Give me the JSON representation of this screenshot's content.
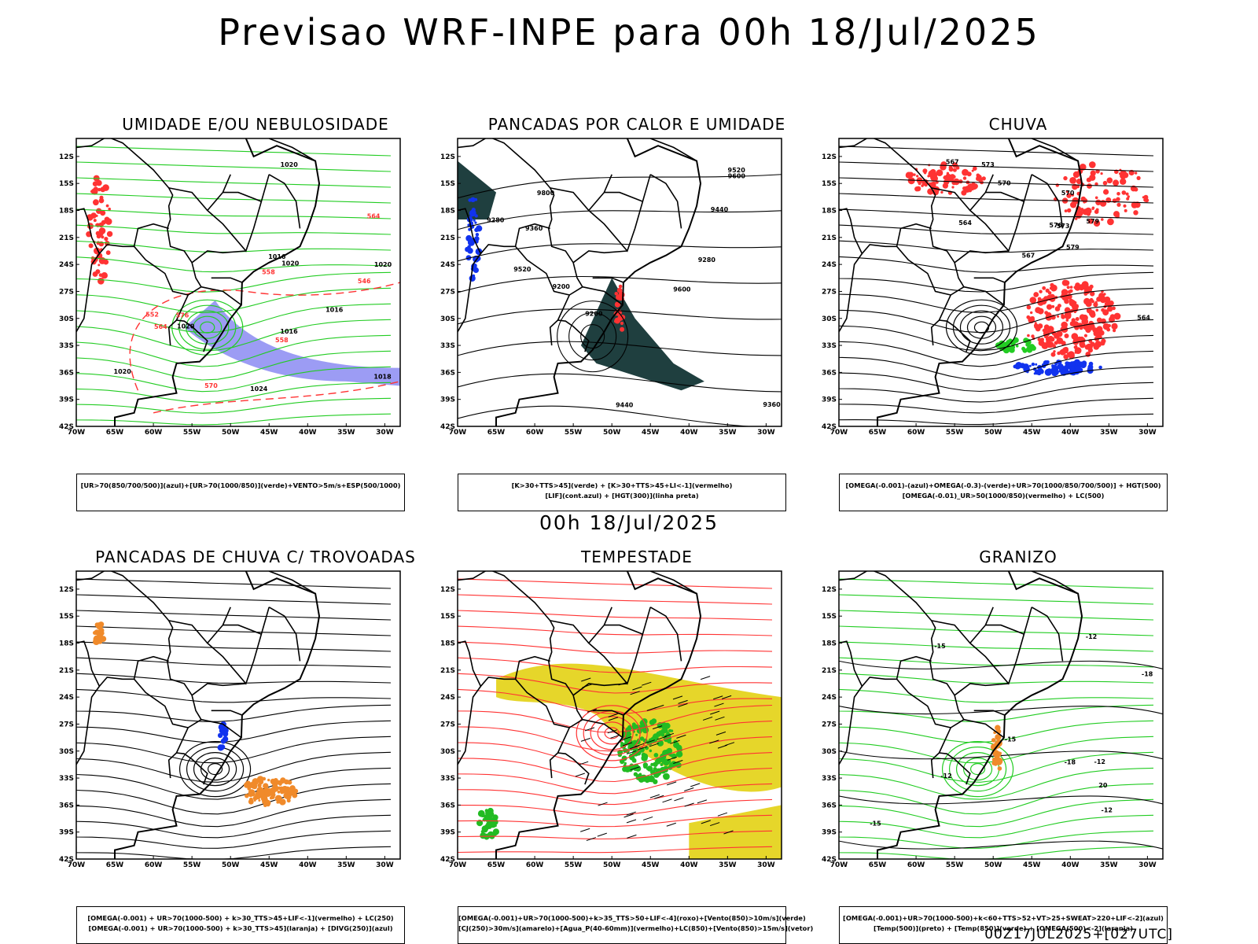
{
  "header": {
    "title": "Previsao WRF-INPE  para 00h 18/Jul/2025",
    "mid_title": "00h 18/Jul/2025",
    "footer": "00Z17JUL2025+[027UTC]"
  },
  "axes": {
    "lat_labels": [
      "12S",
      "15S",
      "18S",
      "21S",
      "24S",
      "27S",
      "30S",
      "33S",
      "36S",
      "39S",
      "42S"
    ],
    "lon_labels": [
      "70W",
      "65W",
      "60W",
      "55W",
      "50W",
      "45W",
      "40W",
      "35W",
      "30W"
    ]
  },
  "panels": [
    {
      "title": "UMIDADE E/OU NEBULOSIDADE",
      "legend": [
        "[UR>70(850/700/500)](azul)+[UR>70(1000/850)](verde)+VENTO>5m/s+ESP(500/1000)"
      ],
      "contour_labels": [
        "1016",
        "1020",
        "1024",
        "1020",
        "1020",
        "1016",
        "1020",
        "1020",
        "1016",
        "1018",
        "570",
        "576",
        "564",
        "558",
        "552",
        "546",
        "564",
        "558"
      ],
      "colors": {
        "shade": "#7b7bf0",
        "contour": "#22cc22",
        "dashed": "#ff3333"
      }
    },
    {
      "title": "PANCADAS POR CALOR E UMIDADE",
      "legend": [
        "[K>30+TTS>45](verde) + [K>30+TTS>45+LI<-1](vermelho)",
        "[LIF](cont.azul) + [HGT(300)](linha preta)"
      ],
      "contour_labels": [
        "9600",
        "9520",
        "9440",
        "9360",
        "9280",
        "9200",
        "9800",
        "9360",
        "9280",
        "9520",
        "9600",
        "9440",
        "9200"
      ],
      "colors": {
        "shade": "#1f3f3f",
        "contour": "#000000",
        "accent": "#ff3333"
      }
    },
    {
      "title": "CHUVA",
      "legend": [
        "[OMEGA(-0.001)-(azul)+OMEGA(-0.3)-(verde)+UR>70(1000/850/700/500)] + HGT(500)",
        "[OMEGA(-0.01)_UR>50(1000/850)(vermelho) + LC(500)"
      ],
      "contour_labels": [
        "579",
        "576",
        "573",
        "570",
        "567",
        "564",
        "579",
        "573",
        "570",
        "567",
        "564"
      ],
      "colors": {
        "shade": "#ff3333",
        "contour": "#000000",
        "accent": "#1133ee"
      }
    },
    {
      "title": "PANCADAS DE CHUVA C/ TROVOADAS",
      "legend": [
        "[OMEGA(-0.001) + UR>70(1000-500) + k>30_TTS>45+LIF<-1](vermelho) + LC(250)",
        "[OMEGA(-0.001) + UR>70(1000-500) + k>30_TTS>45](laranja) + [DIVG(250)](azul)"
      ],
      "contour_labels": [],
      "colors": {
        "shade": "#f08a2a",
        "contour": "#000000",
        "accent": "#1133ee"
      }
    },
    {
      "title": "TEMPESTADE",
      "legend": [
        "[OMEGA(-0.001)+UR>70(1000-500)+k>35_TTS>50+LIF<-4](roxo)+[Vento(850)>10m/s](verde)",
        "[CJ(250)>30m/s](amarelo)+[Agua_P(40-60mm)](vermelho)+LC(850)+[Vento(850)>15m/s](vetor)"
      ],
      "contour_labels": [],
      "colors": {
        "shade": "#e6d62a",
        "contour": "#ff3333",
        "accent": "#22bb22"
      }
    },
    {
      "title": "GRANIZO",
      "legend": [
        "[OMEGA(-0.001)+UR>70(1000-500)+k<60+TTS>52+VT>25+SWEAT>220+LIF<-2](azul)",
        "[Temp(500)](preto) + [Temp(850)](verde) + [OMEGA(500)<-2](laranja)"
      ],
      "contour_labels": [
        "-12",
        "-15",
        "-15",
        "-12",
        "-18",
        "-18",
        "-15",
        "-12",
        "-12",
        "20"
      ],
      "colors": {
        "shade": "#f08a2a",
        "contour": "#22cc22",
        "accent": "#000000"
      }
    }
  ]
}
